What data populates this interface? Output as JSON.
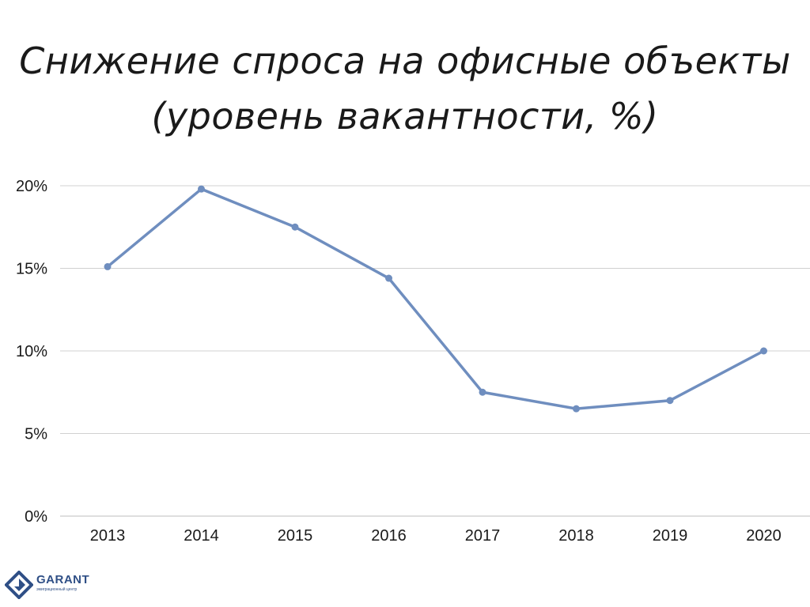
{
  "title_line1": "Снижение спроса на офисные объекты",
  "title_line2": "(уровень вакантности, %)",
  "chart_data": {
    "type": "line",
    "categories": [
      "2013",
      "2014",
      "2015",
      "2016",
      "2017",
      "2018",
      "2019",
      "2020"
    ],
    "series": [
      {
        "values": [
          15.1,
          19.8,
          17.5,
          14.4,
          7.5,
          6.5,
          7.0,
          10.0
        ]
      }
    ],
    "ylim": [
      0,
      20
    ],
    "yticks": [
      0,
      5,
      10,
      15,
      20
    ],
    "ytick_labels": [
      "0%",
      "5%",
      "10%",
      "15%",
      "20%"
    ],
    "grid": "horizontal",
    "line_color": "#6f8ebf",
    "grid_color": "#d0d0d0"
  },
  "logo": {
    "name": "GARANT",
    "tagline": "эмиграционный центр",
    "color": "#2f4f86"
  }
}
